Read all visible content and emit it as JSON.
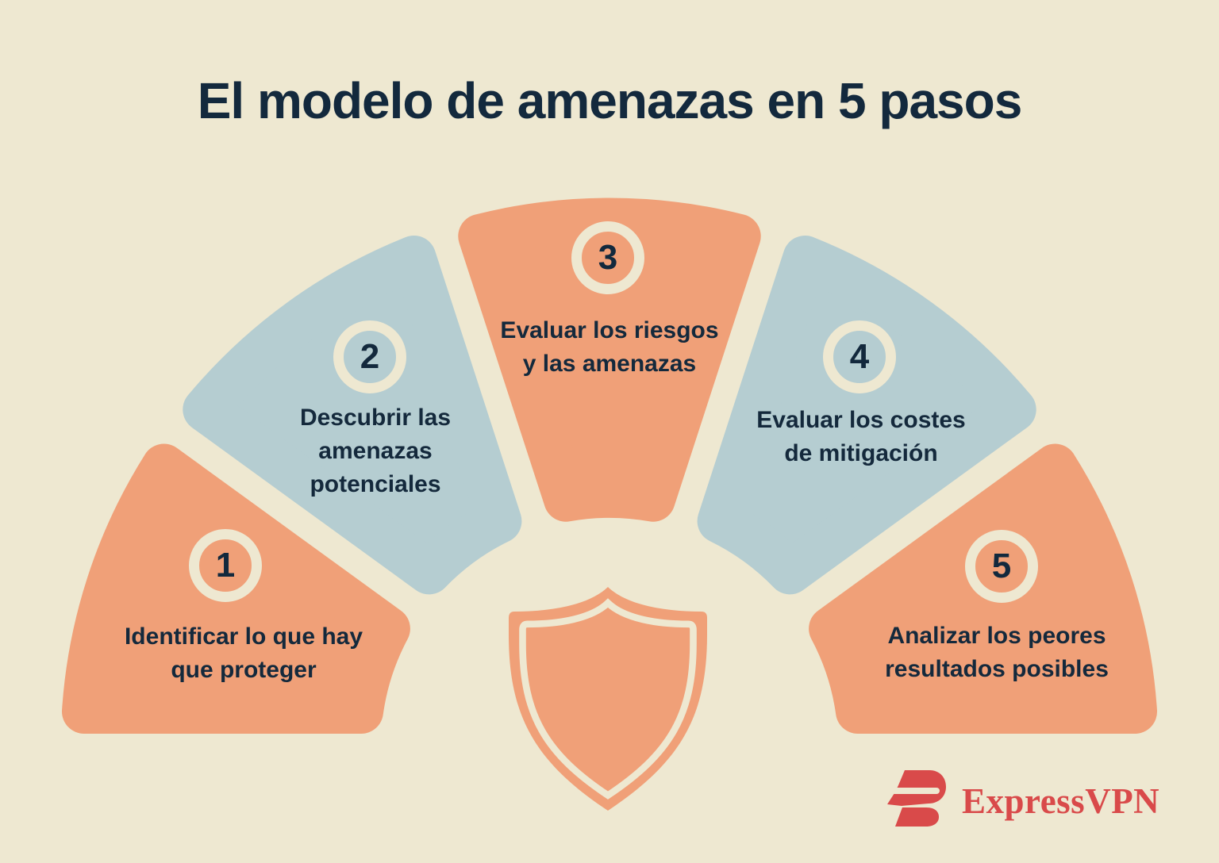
{
  "title": "El modelo de amenazas en 5 pasos",
  "colors": {
    "background": "#EEE8D1",
    "orange": "#F0A078",
    "blue": "#B5CDD1",
    "navy": "#13293D",
    "cream_ring": "#EEE8D1",
    "brand_red": "#D94A4A"
  },
  "steps": [
    {
      "number": "1",
      "color": "#F0A078",
      "label": "Identificar lo que hay que proteger",
      "label_lines": [
        "Identificar lo que hay",
        "que proteger"
      ]
    },
    {
      "number": "2",
      "color": "#B5CDD1",
      "label": "Descubrir las amenazas potenciales",
      "label_lines": [
        "Descubrir las",
        "amenazas",
        "potenciales"
      ]
    },
    {
      "number": "3",
      "color": "#F0A078",
      "label": "Evaluar los riesgos y las amenazas",
      "label_lines": [
        "Evaluar los riesgos",
        "y las amenazas"
      ]
    },
    {
      "number": "4",
      "color": "#B5CDD1",
      "label": "Evaluar los costes de mitigación",
      "label_lines": [
        "Evaluar los costes",
        "de mitigación"
      ]
    },
    {
      "number": "5",
      "color": "#F0A078",
      "label": "Analizar los peores resultados posibles",
      "label_lines": [
        "Analizar los peores",
        "resultados posibles"
      ]
    }
  ],
  "center_icon": "shield-icon",
  "footer": {
    "brand": "ExpressVPN",
    "logo_icon": "expressvpn-logo-icon"
  }
}
